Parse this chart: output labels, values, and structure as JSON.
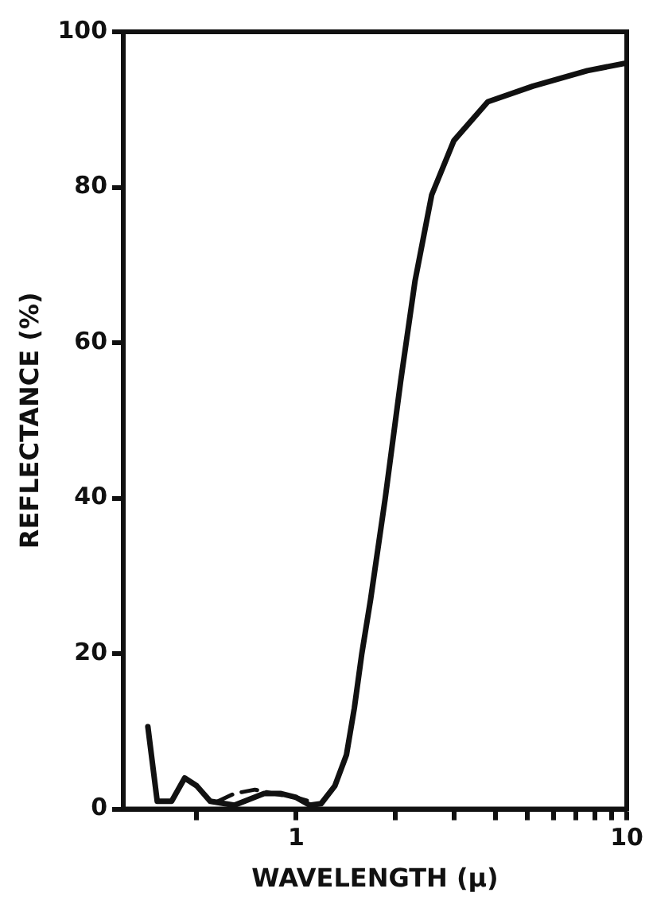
{
  "chart_data": {
    "type": "line",
    "xlabel": "WAVELENGTH (μ)",
    "ylabel": "REFLECTANCE (%)",
    "log": "x",
    "grid": false,
    "legend": false,
    "marker": "none",
    "xlim": [
      0.3,
      10
    ],
    "ylim": [
      0,
      100
    ],
    "xticks": [
      {
        "value": 0.5,
        "label": null
      },
      1,
      {
        "value": 2,
        "label": null
      },
      {
        "value": 3,
        "label": null
      },
      {
        "value": 4,
        "label": null
      },
      {
        "value": 5,
        "label": null
      },
      {
        "value": 6,
        "label": null
      },
      {
        "value": 7,
        "label": null
      },
      {
        "value": 8,
        "label": null
      },
      {
        "value": 9,
        "label": null
      },
      10
    ],
    "yticks": [
      0,
      20,
      40,
      60,
      80,
      100
    ],
    "series": [
      {
        "color": "#111111",
        "line_style": "solid",
        "x": [
          0.356,
          0.38,
          0.42,
          0.46,
          0.5,
          0.55,
          0.65,
          0.8,
          0.9,
          1.0,
          1.1,
          1.19,
          1.31,
          1.42,
          1.5,
          1.58,
          1.68,
          1.86,
          2.07,
          2.29,
          2.57,
          3.0,
          3.8,
          5.2,
          7.6,
          10
        ],
        "values": [
          10.6,
          1,
          1,
          4,
          3,
          1,
          0.5,
          2,
          2,
          1.5,
          0.5,
          0.7,
          3,
          7,
          13,
          20,
          27,
          40,
          55,
          68,
          79,
          86,
          91,
          93,
          95,
          96
        ]
      },
      {
        "color": "#111111",
        "line_style": "dashed",
        "x": [
          0.58,
          0.65,
          0.75,
          0.85,
          1.0,
          1.1
        ],
        "values": [
          1,
          2,
          2.5,
          2,
          1.5,
          1
        ]
      }
    ]
  }
}
